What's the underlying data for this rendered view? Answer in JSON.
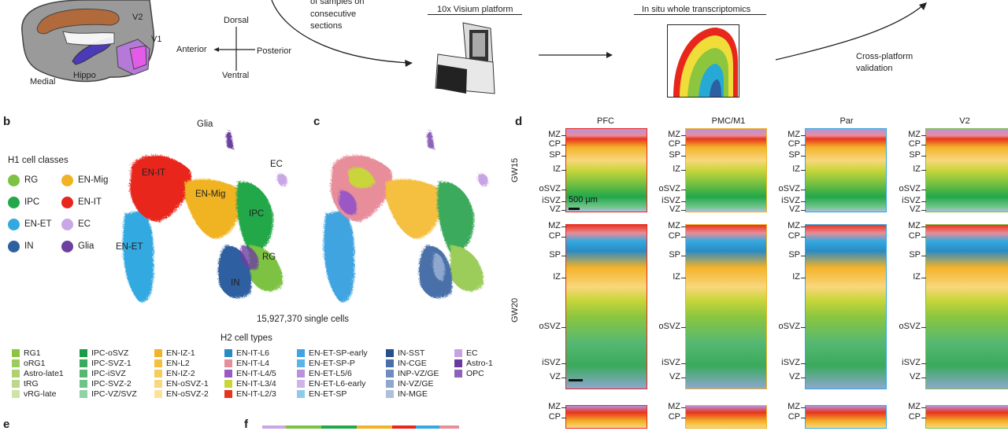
{
  "panel_a": {
    "brain_labels": {
      "v2": "V2",
      "v1": "V1",
      "hippo": "Hippo",
      "medial": "Medial"
    },
    "axes": {
      "dorsal": "Dorsal",
      "ventral": "Ventral",
      "anterior": "Anterior",
      "posterior": "Posterior"
    },
    "samples_text_1": "of samples on",
    "samples_text_2": "consecutive",
    "samples_text_3": "sections",
    "visium_label": "10x Visium platform",
    "insitu_label": "In situ whole transcriptomics",
    "validation_1": "Cross-platform",
    "validation_2": "validation"
  },
  "panel_letters": {
    "b": "b",
    "c": "c",
    "d": "d",
    "e": "e",
    "f": "f"
  },
  "panel_b": {
    "legend_title": "H1 cell classes",
    "classes": [
      {
        "name": "RG",
        "color": "#7dc242"
      },
      {
        "name": "EN-Mig",
        "color": "#f0b323"
      },
      {
        "name": "IPC",
        "color": "#22a84a"
      },
      {
        "name": "EN-IT",
        "color": "#e8261c"
      },
      {
        "name": "EN-ET",
        "color": "#33a9e0"
      },
      {
        "name": "EC",
        "color": "#c9a6e6"
      },
      {
        "name": "IN",
        "color": "#2d5fa1"
      },
      {
        "name": "Glia",
        "color": "#6c3fa0"
      }
    ],
    "umap_labels": {
      "glia": "Glia",
      "en_it": "EN-IT",
      "en_mig": "EN-Mig",
      "ec": "EC",
      "ipc": "IPC",
      "en_et": "EN-ET",
      "rg": "RG",
      "in": "IN"
    },
    "cell_count": "15,927,370 single cells"
  },
  "h2": {
    "title": "H2 cell types",
    "columns": [
      [
        {
          "name": "RG1",
          "color": "#8cc63f"
        },
        {
          "name": "oRG1",
          "color": "#9ccc5a"
        },
        {
          "name": "Astro-late1",
          "color": "#aed36e"
        },
        {
          "name": "tRG",
          "color": "#bcd98a"
        },
        {
          "name": "vRG-late",
          "color": "#cfe3a6"
        }
      ],
      [
        {
          "name": "IPC-oSVZ",
          "color": "#1a9b48"
        },
        {
          "name": "IPC-SVZ-1",
          "color": "#3aaa5c"
        },
        {
          "name": "IPC-iSVZ",
          "color": "#55b872"
        },
        {
          "name": "IPC-SVZ-2",
          "color": "#6ec488"
        },
        {
          "name": "IPC-VZ/SVZ",
          "color": "#8fd2a3"
        }
      ],
      [
        {
          "name": "EN-IZ-1",
          "color": "#f3b22a"
        },
        {
          "name": "EN-L2",
          "color": "#f5bf3f"
        },
        {
          "name": "EN-IZ-2",
          "color": "#f7cb5c"
        },
        {
          "name": "EN-oSVZ-1",
          "color": "#f9d77c"
        },
        {
          "name": "EN-oSVZ-2",
          "color": "#fbe29c"
        }
      ],
      [
        {
          "name": "EN-IT-L6",
          "color": "#2a8bc4"
        },
        {
          "name": "EN-IT-L4",
          "color": "#e88d9a"
        },
        {
          "name": "EN-IT-L4/5",
          "color": "#9b59c4"
        },
        {
          "name": "EN-IT-L3/4",
          "color": "#c8d63a"
        },
        {
          "name": "EN-IT-L2/3",
          "color": "#e8341c"
        }
      ],
      [
        {
          "name": "EN-ET-SP-early",
          "color": "#3fa4e0"
        },
        {
          "name": "EN-ET-SP-P",
          "color": "#5bb3e6"
        },
        {
          "name": "EN-ET-L5/6",
          "color": "#b892dc"
        },
        {
          "name": "EN-ET-L6-early",
          "color": "#cfb3ea"
        },
        {
          "name": "EN-ET-SP",
          "color": "#8ccbee"
        }
      ],
      [
        {
          "name": "IN-SST",
          "color": "#274f8a"
        },
        {
          "name": "IN-CGE",
          "color": "#4a6fa8"
        },
        {
          "name": "INP-VZ/GE",
          "color": "#6e8cbd"
        },
        {
          "name": "IN-VZ/GE",
          "color": "#8ea7cf"
        },
        {
          "name": "IN-MGE",
          "color": "#aebfdd"
        }
      ],
      [
        {
          "name": "EC",
          "color": "#c7a3e4"
        },
        {
          "name": "Astro-1",
          "color": "#6b3a9e"
        },
        {
          "name": "OPC",
          "color": "#8d62b8"
        }
      ]
    ]
  },
  "panel_d": {
    "regions": [
      "PFC",
      "PMC/M1",
      "Par",
      "V2"
    ],
    "gw15": "GW15",
    "gw20": "GW20",
    "scale_bar": "500 µm",
    "layers_gw15": [
      "MZ",
      "CP",
      "SP",
      "IZ",
      "oSVZ",
      "iSVZ",
      "VZ"
    ],
    "layers_gw20_a": [
      "MZ",
      "CP",
      "SP",
      "IZ",
      "oSVZ",
      "iSVZ",
      "VZ"
    ],
    "layers_gw20_b": [
      "MZ",
      "CP",
      "SP",
      "IZ",
      "oSVZ",
      "iSVZ",
      "VZ"
    ],
    "layers_bottom": [
      "MZ",
      "CP"
    ]
  }
}
